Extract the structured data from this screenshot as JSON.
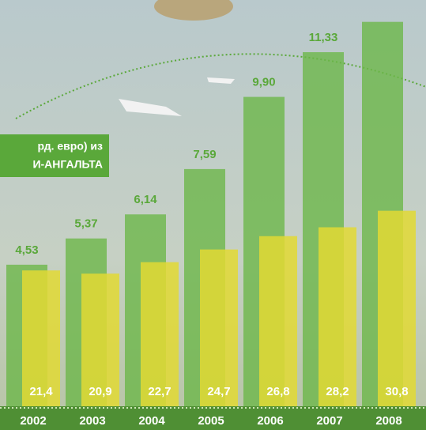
{
  "chart_data": {
    "type": "bar",
    "title_lines": [
      "рд. евро) из",
      "И-АНГАЛЬТА"
    ],
    "categories": [
      "2002",
      "2003",
      "2004",
      "2005",
      "2006",
      "2007",
      "2008"
    ],
    "series": [
      {
        "color": "#6db64a",
        "values": [
          4.53,
          5.37,
          6.14,
          7.59,
          9.9,
          11.33,
          12.3
        ],
        "value_labels": [
          "4,53",
          "5,37",
          "6,14",
          "7,59",
          "9,90",
          "11,33",
          null
        ]
      },
      {
        "color": "#e2d934",
        "axis": "y2",
        "values": [
          21.4,
          20.9,
          22.7,
          24.7,
          26.8,
          28.2,
          30.8
        ],
        "value_labels": [
          "21,4",
          "20,9",
          "22,7",
          "24,7",
          "26,8",
          "28,2",
          "30,8"
        ]
      }
    ],
    "ylim": [
      0,
      13
    ],
    "y2lim": [
      0,
      64
    ]
  }
}
